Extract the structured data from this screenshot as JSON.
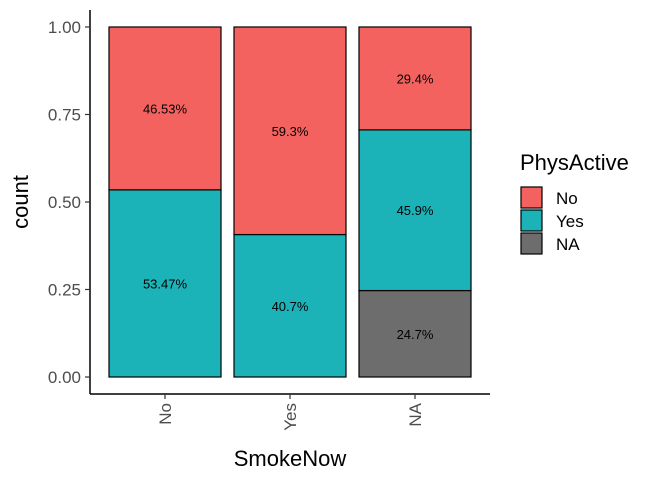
{
  "chart_data": {
    "type": "bar",
    "stacked": true,
    "normalized": true,
    "categories": [
      "No",
      "Yes",
      "NA"
    ],
    "series": [
      {
        "name": "NA",
        "color": "#6d6d6d",
        "values": [
          0,
          0,
          0.247
        ],
        "labels": [
          "",
          "",
          "24.7%"
        ]
      },
      {
        "name": "Yes",
        "color": "#1cb3b8",
        "values": [
          0.5347,
          0.407,
          0.459
        ],
        "labels": [
          "53.47%",
          "40.7%",
          "45.9%"
        ]
      },
      {
        "name": "No",
        "color": "#f4625f",
        "values": [
          0.4653,
          0.593,
          0.294
        ],
        "labels": [
          "46.53%",
          "59.3%",
          "29.4%"
        ]
      }
    ],
    "xlabel": "SmokeNow",
    "ylabel": "count",
    "ylim": [
      0,
      1
    ],
    "yticks": [
      "0.00",
      "0.25",
      "0.50",
      "0.75",
      "1.00"
    ],
    "ytick_values": [
      0,
      0.25,
      0.5,
      0.75,
      1.0
    ],
    "grid": false,
    "legend": {
      "title": "PhysActive",
      "placement": "right",
      "entries": [
        {
          "label": "No",
          "color": "#f4625f"
        },
        {
          "label": "Yes",
          "color": "#1cb3b8"
        },
        {
          "label": "NA",
          "color": "#6d6d6d"
        }
      ]
    }
  }
}
